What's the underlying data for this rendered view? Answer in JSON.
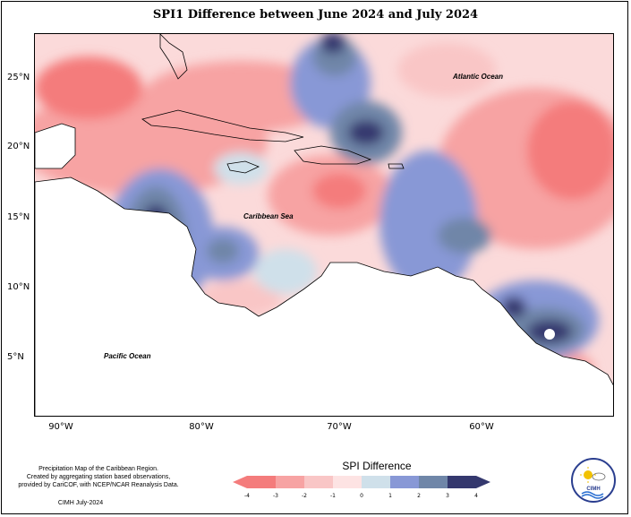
{
  "title": "SPI1 Difference between June 2024 and July 2024",
  "latitude_labels": [
    "25°N",
    "20°N",
    "15°N",
    "10°N",
    "5°N"
  ],
  "longitude_labels": [
    "90°W",
    "80°W",
    "70°W",
    "60°W"
  ],
  "ocean_labels": {
    "atlantic": "Atlantic Ocean",
    "caribbean": "Caribbean Sea",
    "pacific": "Pacific Ocean"
  },
  "credits": {
    "line1": "Precipitation Map of the Caribbean Region.",
    "line2": "Created by aggregating station based observations,",
    "line3": "provided by CariCOF, with NCEP/NCAR Reanalysis Data.",
    "footer": "CIMH July-2024"
  },
  "legend": {
    "title": "SPI Difference",
    "ticks": [
      "-4",
      "-3",
      "-2",
      "-1",
      "0",
      "1",
      "2",
      "3",
      "4"
    ],
    "colors": [
      "#f47c7c",
      "#f7a3a3",
      "#f9c6c6",
      "#fde3e3",
      "#cfe0ea",
      "#8898d6",
      "#6f86a8",
      "#34386e"
    ]
  },
  "logo": {
    "text": "CIMH"
  },
  "colors": {
    "strong_dry": "#f47c7c",
    "dry": "#f7a3a3",
    "light_dry": "#f9c6c6",
    "near_normal": "#fde3e3",
    "light_wet": "#cfe0ea",
    "wet": "#8898d6",
    "very_wet": "#6f86a8",
    "extreme_wet": "#34386e"
  }
}
